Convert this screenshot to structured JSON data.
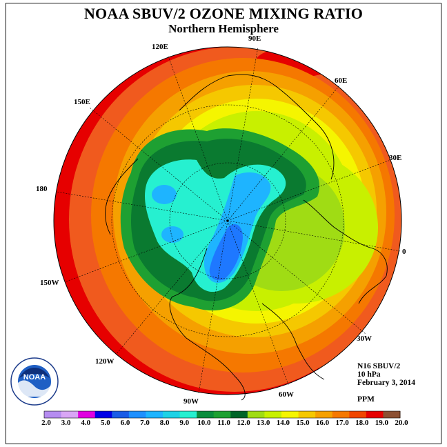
{
  "title": "NOAA SBUV/2 OZONE MIXING RATIO",
  "subtitle": "Northern Hemisphere",
  "longitude_labels": {
    "e120": "120E",
    "e90": "90E",
    "e60": "60E",
    "e30": "30E",
    "zero": "0",
    "e150": "150E",
    "d180": "180",
    "w150": "150W",
    "w120": "120W",
    "w90": "90W",
    "w60": "60W",
    "w30": "30W"
  },
  "info": {
    "instrument": "N16 SBUV/2",
    "pressure": "10 hPa",
    "date": "February 3, 2014",
    "units": "PPM"
  },
  "logo_text": "NOAA",
  "legend": {
    "values": [
      "2.0",
      "3.0",
      "4.0",
      "5.0",
      "6.0",
      "7.0",
      "8.0",
      "9.0",
      "10.0",
      "11.0",
      "12.0",
      "13.0",
      "14.0",
      "15.0",
      "16.0",
      "17.0",
      "18.0",
      "19.0",
      "20.0"
    ],
    "colors": [
      "#b58cf0",
      "#d9a6f5",
      "#e000e0",
      "#0000e6",
      "#1a5ce6",
      "#1e90ff",
      "#1eb4ff",
      "#1ed2e6",
      "#26f0d0",
      "#0a8c3c",
      "#1ea032",
      "#006428",
      "#a0dc14",
      "#c8f000",
      "#f5f500",
      "#f5c800",
      "#f5a000",
      "#f57800",
      "#f04600",
      "#e60000",
      "#8c5032"
    ]
  },
  "colors": {
    "orange_red": "#f05a1e",
    "red": "#e60000",
    "orange": "#f58c00",
    "light_orange": "#f5b400",
    "yellow": "#f5f000",
    "yellow_green": "#c8f000",
    "lime": "#a0dc14",
    "dark_green": "#0a7a30",
    "green": "#1ea032",
    "cyan": "#26f0d0",
    "light_blue": "#1eb4ff",
    "blue": "#1e78ff"
  }
}
